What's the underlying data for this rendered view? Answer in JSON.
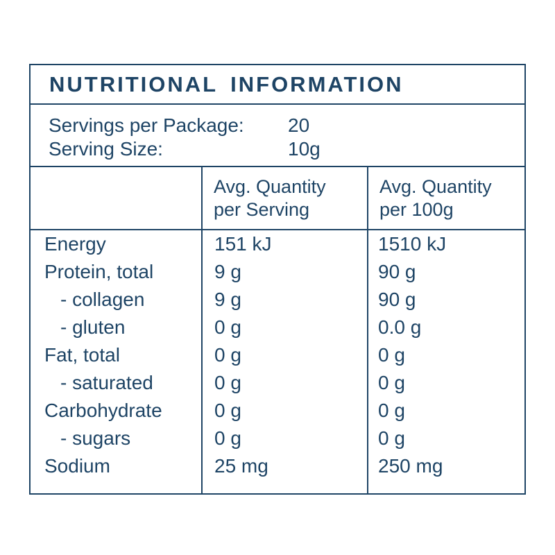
{
  "label": {
    "title": "NUTRITIONAL INFORMATION",
    "servings": [
      {
        "label": "Servings per Package:",
        "value": "20"
      },
      {
        "label": "Serving Size:",
        "value": "10g"
      }
    ],
    "col_headers": [
      {
        "line1": "Avg. Quantity",
        "line2": "per Serving"
      },
      {
        "line1": "Avg. Quantity",
        "line2": "per 100g"
      }
    ],
    "rows": [
      {
        "nutrient": "Energy",
        "per_serving": "151 kJ",
        "per_100g": "1510 kJ"
      },
      {
        "nutrient": "Protein, total",
        "per_serving": "9 g",
        "per_100g": "90 g"
      },
      {
        "nutrient": "- collagen",
        "per_serving": "9 g",
        "per_100g": "90 g"
      },
      {
        "nutrient": "- gluten",
        "per_serving": "0 g",
        "per_100g": "0.0 g"
      },
      {
        "nutrient": "Fat, total",
        "per_serving": "0 g",
        "per_100g": "0 g"
      },
      {
        "nutrient": "- saturated",
        "per_serving": "0 g",
        "per_100g": "0 g"
      },
      {
        "nutrient": "Carbohydrate",
        "per_serving": "0 g",
        "per_100g": "0 g"
      },
      {
        "nutrient": "- sugars",
        "per_serving": "0 g",
        "per_100g": "0 g"
      },
      {
        "nutrient": "Sodium",
        "per_serving": "25 mg",
        "per_100g": "250 mg"
      }
    ],
    "colors": {
      "text": "#1e4465",
      "border": "#1e4465",
      "background": "#ffffff"
    }
  }
}
